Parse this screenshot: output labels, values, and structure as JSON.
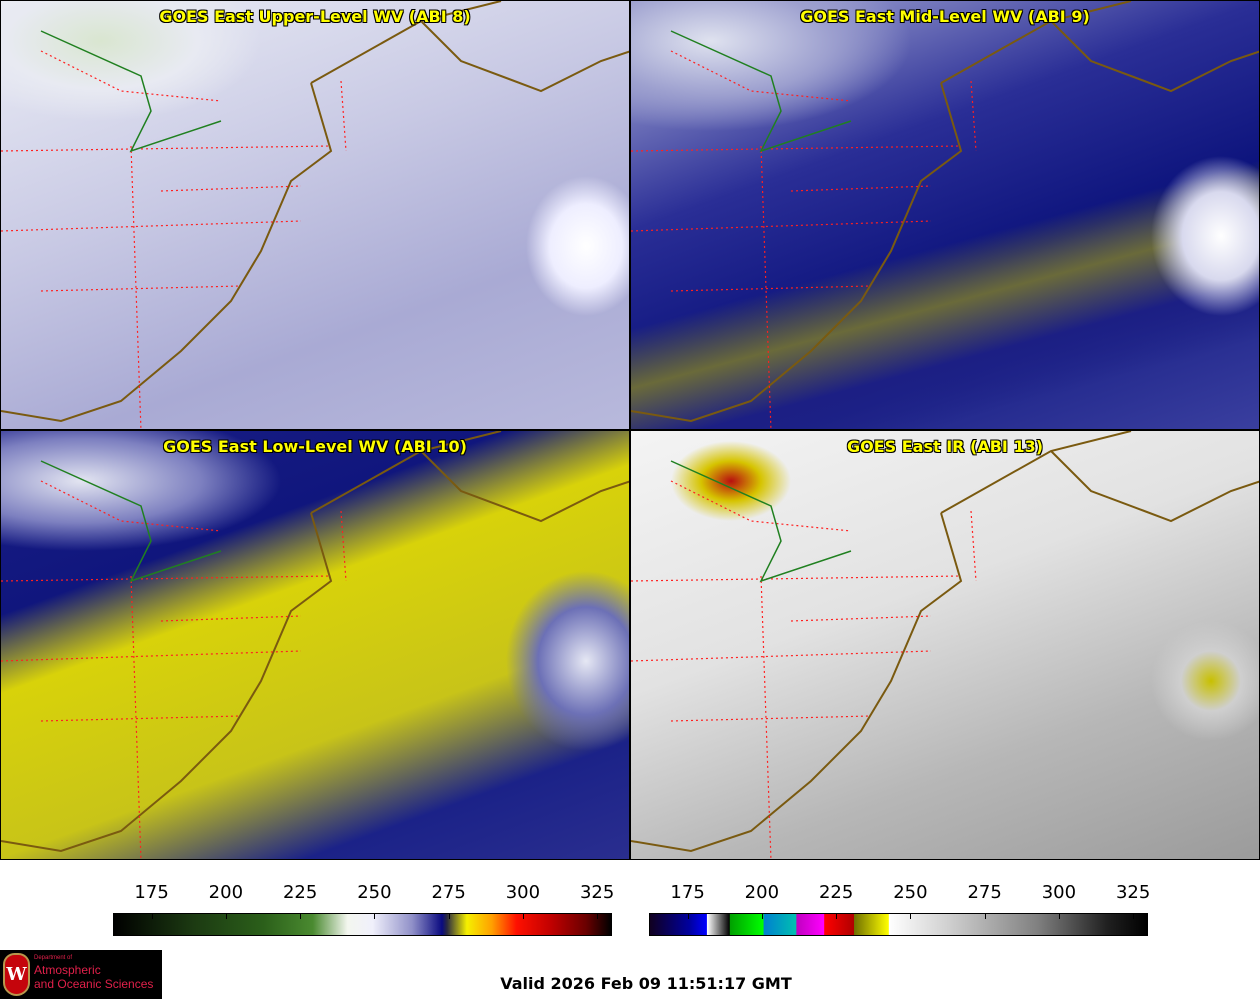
{
  "panels": [
    {
      "title": "GOES East Upper-Level WV (ABI 8)"
    },
    {
      "title": "GOES East Mid-Level WV (ABI 9)"
    },
    {
      "title": "GOES East Low-Level WV (ABI 10)"
    },
    {
      "title": "GOES East IR (ABI 13)"
    }
  ],
  "colorbars": [
    {
      "name": "water-vapor",
      "range": [
        162,
        330
      ],
      "ticks": [
        175,
        200,
        225,
        250,
        275,
        300,
        325
      ]
    },
    {
      "name": "infrared",
      "range": [
        162,
        330
      ],
      "ticks": [
        175,
        200,
        225,
        250,
        275,
        300,
        325
      ]
    }
  ],
  "logo": {
    "line1": "Department of",
    "line2": "Atmospheric",
    "line3": "and Oceanic Sciences",
    "shield": "W"
  },
  "valid_time": "Valid 2026 Feb 09 11:51:17 GMT",
  "colors": {
    "title": "#ffff00",
    "coast": "#7a5a10",
    "state_borders": "#ff2020",
    "lake_line": "#208020"
  }
}
